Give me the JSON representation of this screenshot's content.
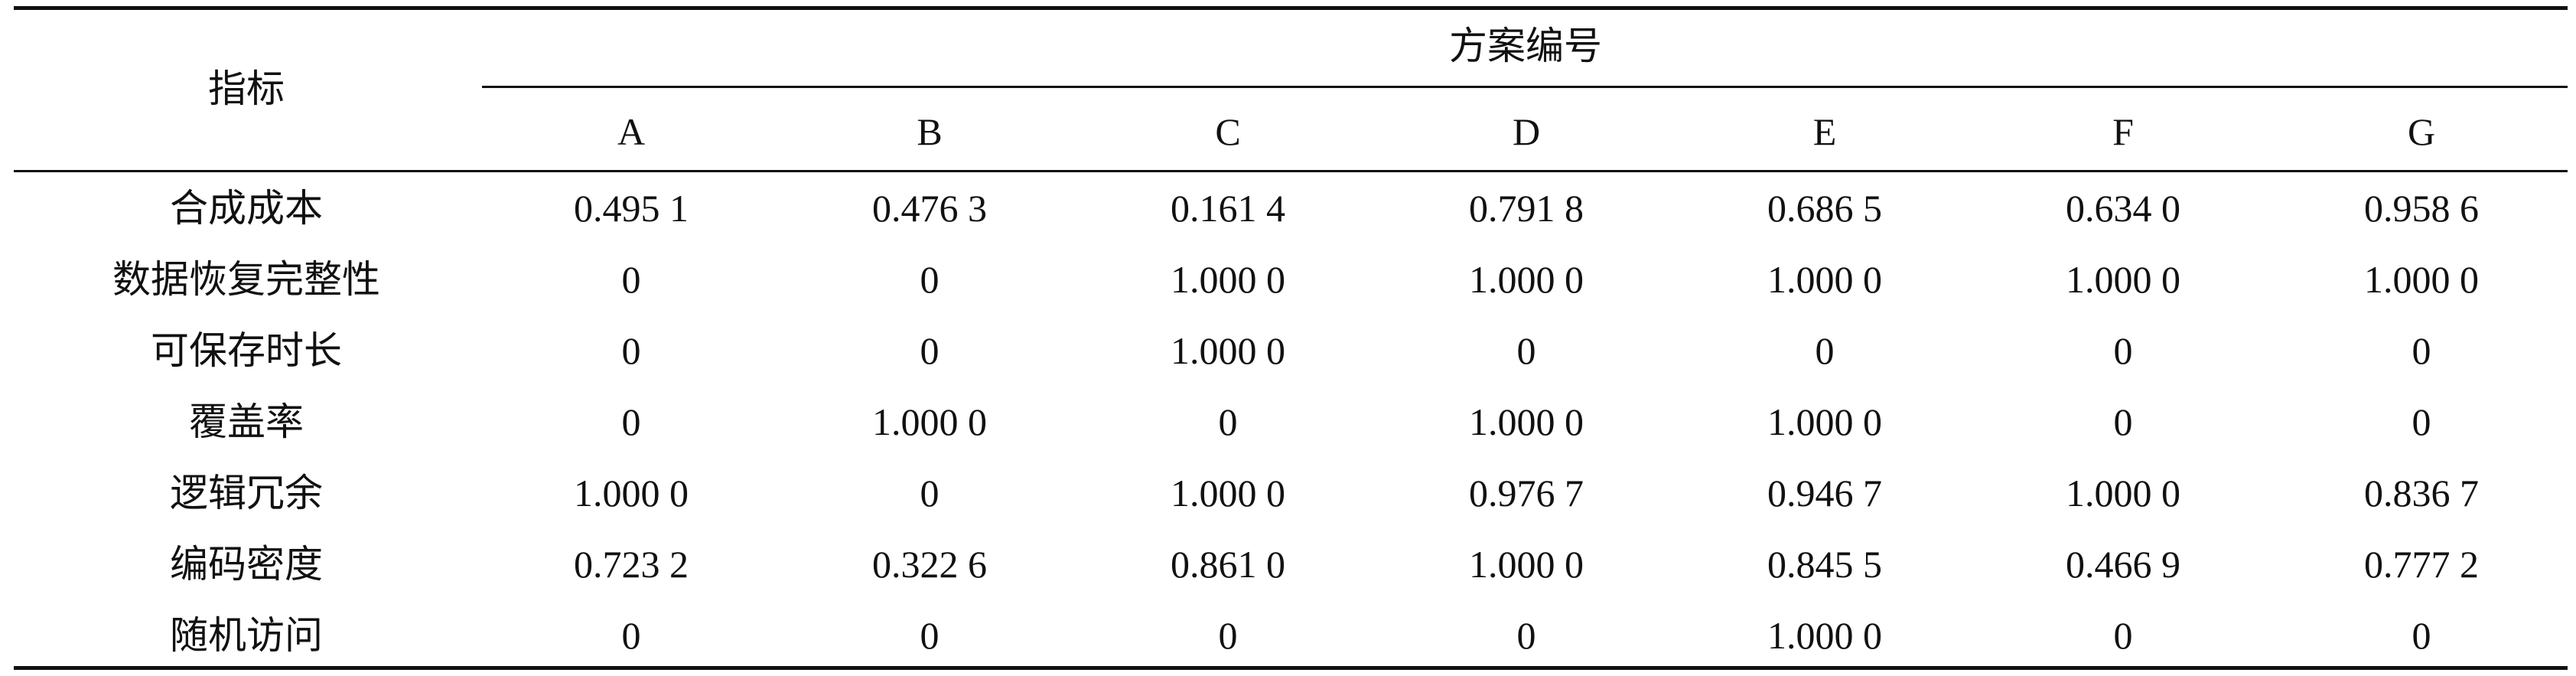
{
  "table": {
    "corner_header": "指标",
    "group_header": "方案编号",
    "columns": [
      "A",
      "B",
      "C",
      "D",
      "E",
      "F",
      "G"
    ],
    "rows": [
      {
        "label": "合成成本",
        "values": [
          "0.495 1",
          "0.476 3",
          "0.161 4",
          "0.791 8",
          "0.686 5",
          "0.634 0",
          "0.958 6"
        ]
      },
      {
        "label": "数据恢复完整性",
        "values": [
          "0",
          "0",
          "1.000 0",
          "1.000 0",
          "1.000 0",
          "1.000 0",
          "1.000 0"
        ]
      },
      {
        "label": "可保存时长",
        "values": [
          "0",
          "0",
          "1.000 0",
          "0",
          "0",
          "0",
          "0"
        ]
      },
      {
        "label": "覆盖率",
        "values": [
          "0",
          "1.000 0",
          "0",
          "1.000 0",
          "1.000 0",
          "0",
          "0"
        ]
      },
      {
        "label": "逻辑冗余",
        "values": [
          "1.000 0",
          "0",
          "1.000 0",
          "0.976 7",
          "0.946 7",
          "1.000 0",
          "0.836 7"
        ]
      },
      {
        "label": "编码密度",
        "values": [
          "0.723 2",
          "0.322 6",
          "0.861 0",
          "1.000 0",
          "0.845 5",
          "0.466 9",
          "0.777 2"
        ]
      },
      {
        "label": "随机访问",
        "values": [
          "0",
          "0",
          "0",
          "0",
          "1.000 0",
          "0",
          "0"
        ]
      }
    ]
  }
}
